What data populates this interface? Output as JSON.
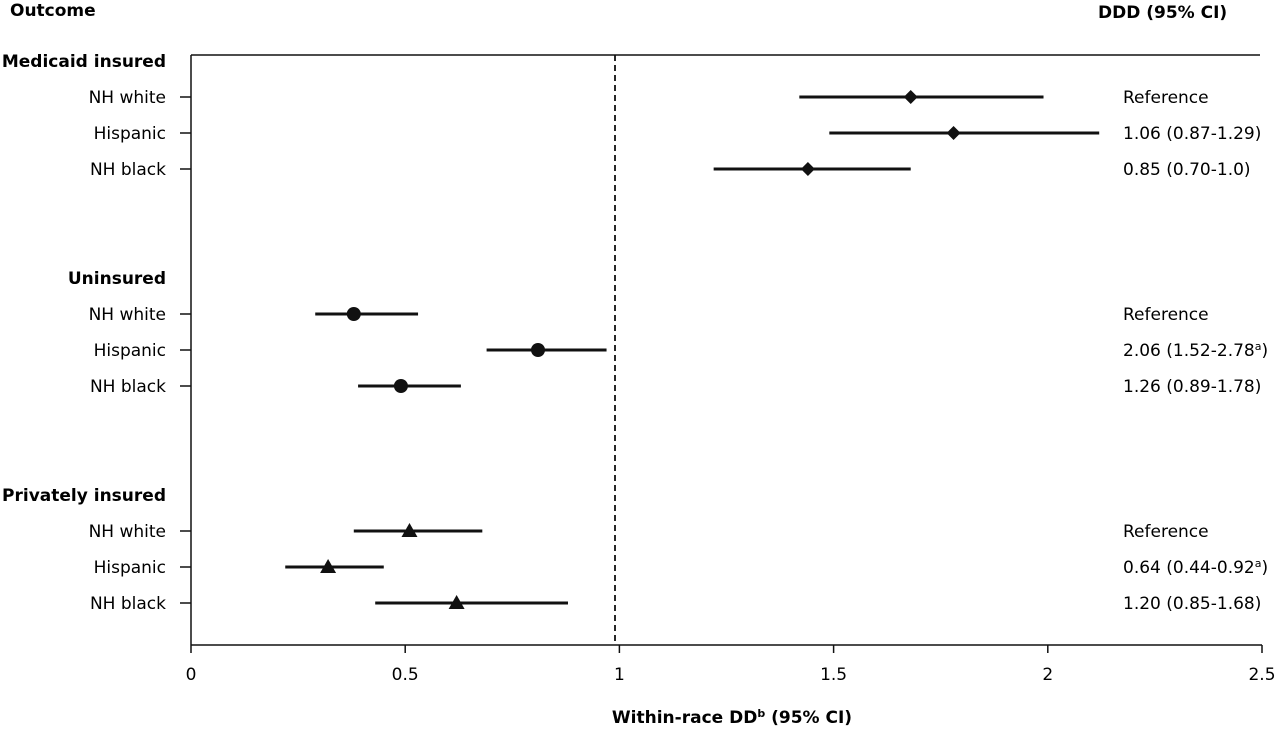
{
  "chart_data": {
    "type": "forest",
    "header_left": "Outcome",
    "header_right": "DDD (95% CI)",
    "xlabel_main": "Within-race DD",
    "xlabel_sup": "b",
    "xlabel_tail": " (95% CI)",
    "xlim": [
      0,
      2.5
    ],
    "xticks": [
      "0",
      "0.5",
      "1",
      "1.5",
      "2",
      "2.5"
    ],
    "reference_line": 1,
    "groups": [
      {
        "name": "Medicaid insured",
        "marker": "diamond",
        "rows": [
          {
            "label": "NH white",
            "estimate": 1.68,
            "lower": 1.42,
            "upper": 1.99,
            "ddd": "Reference",
            "ddd_sup": ""
          },
          {
            "label": "Hispanic",
            "estimate": 1.78,
            "lower": 1.49,
            "upper": 2.12,
            "ddd": "1.06 (0.87-1.29)",
            "ddd_sup": ""
          },
          {
            "label": "NH black",
            "estimate": 1.44,
            "lower": 1.22,
            "upper": 1.68,
            "ddd": "0.85 (0.70-1.0)",
            "ddd_sup": ""
          }
        ]
      },
      {
        "name": "Uninsured",
        "marker": "circle",
        "rows": [
          {
            "label": "NH white",
            "estimate": 0.38,
            "lower": 0.29,
            "upper": 0.53,
            "ddd": "Reference",
            "ddd_sup": ""
          },
          {
            "label": "Hispanic",
            "estimate": 0.81,
            "lower": 0.69,
            "upper": 0.97,
            "ddd": "2.06 (1.52-2.78",
            "ddd_sup": "a",
            "ddd_tail": ")"
          },
          {
            "label": "NH black",
            "estimate": 0.49,
            "lower": 0.39,
            "upper": 0.63,
            "ddd": "1.26 (0.89-1.78)",
            "ddd_sup": ""
          }
        ]
      },
      {
        "name": "Privately insured",
        "marker": "triangle",
        "rows": [
          {
            "label": "NH white",
            "estimate": 0.51,
            "lower": 0.38,
            "upper": 0.68,
            "ddd": "Reference",
            "ddd_sup": ""
          },
          {
            "label": "Hispanic",
            "estimate": 0.32,
            "lower": 0.22,
            "upper": 0.45,
            "ddd": "0.64 (0.44-0.92",
            "ddd_sup": "a",
            "ddd_tail": ")"
          },
          {
            "label": "NH black",
            "estimate": 0.62,
            "lower": 0.43,
            "upper": 0.88,
            "ddd": "1.20 (0.85-1.68)",
            "ddd_sup": ""
          }
        ]
      }
    ]
  }
}
